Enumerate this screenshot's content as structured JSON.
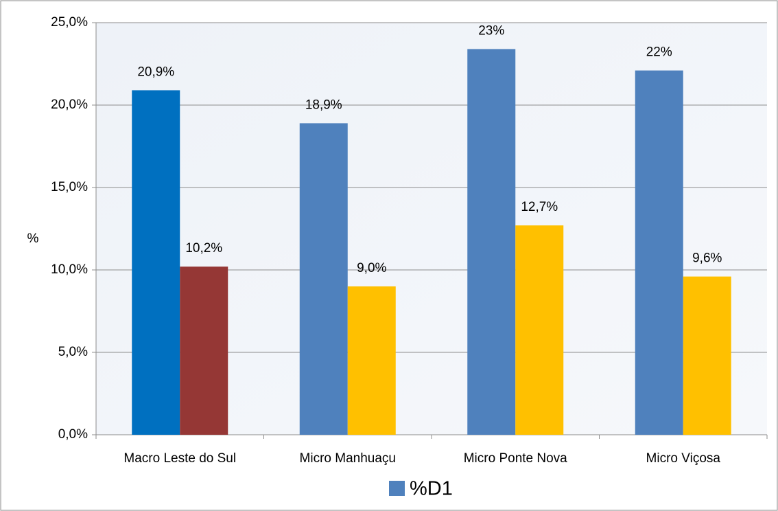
{
  "chart_data": {
    "type": "bar",
    "y_label": "%",
    "categories": [
      "Macro Leste do Sul",
      "Micro Manhuaçu",
      "Micro Ponte Nova",
      "Micro Viçosa"
    ],
    "series": [
      {
        "name": "%D1",
        "color": "#4f81bd",
        "colors": [
          "#0070c0",
          "#4f81bd",
          "#4f81bd",
          "#4f81bd"
        ],
        "values": [
          20.9,
          18.9,
          23.4,
          22.1
        ],
        "value_labels": [
          "20,9%",
          "18,9%",
          "23%",
          "22%"
        ]
      },
      {
        "color": "#ffc000",
        "colors": [
          "#953735",
          "#ffc000",
          "#ffc000",
          "#ffc000"
        ],
        "values": [
          10.2,
          9.0,
          12.7,
          9.6
        ],
        "value_labels": [
          "10,2%",
          "9,0%",
          "12,7%",
          "9,6%"
        ]
      }
    ],
    "ylim": [
      0,
      25
    ],
    "yticks": [
      {
        "value": 0,
        "label": "0,0%"
      },
      {
        "value": 5,
        "label": "5,0%"
      },
      {
        "value": 10,
        "label": "10,0%"
      },
      {
        "value": 15,
        "label": "15,0%"
      },
      {
        "value": 20,
        "label": "20,0%"
      },
      {
        "value": 25,
        "label": "25,0%"
      }
    ],
    "grid": true
  }
}
